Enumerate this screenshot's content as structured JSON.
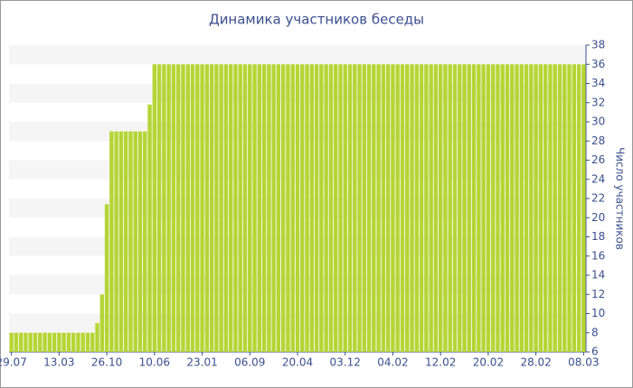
{
  "chart_data": {
    "type": "bar",
    "title": "Динамика участников беседы",
    "y_label": "Число участников",
    "color": "#b5d536",
    "grid": true,
    "ylim": [
      6,
      38
    ],
    "yticks": [
      6,
      8,
      10,
      12,
      14,
      16,
      18,
      20,
      22,
      24,
      26,
      28,
      30,
      32,
      34,
      36,
      38
    ],
    "categories": [
      "29.07",
      null,
      null,
      null,
      null,
      null,
      null,
      null,
      null,
      null,
      "13.03",
      null,
      null,
      null,
      null,
      null,
      null,
      null,
      null,
      null,
      "26.10",
      null,
      null,
      null,
      null,
      null,
      null,
      null,
      null,
      null,
      "10.06",
      null,
      null,
      null,
      null,
      null,
      null,
      null,
      null,
      null,
      "23.01",
      null,
      null,
      null,
      null,
      null,
      null,
      null,
      null,
      null,
      "06.09",
      null,
      null,
      null,
      null,
      null,
      null,
      null,
      null,
      null,
      "20.04",
      null,
      null,
      null,
      null,
      null,
      null,
      null,
      null,
      null,
      "03.12",
      null,
      null,
      null,
      null,
      null,
      null,
      null,
      null,
      null,
      "04.02",
      null,
      null,
      null,
      null,
      null,
      null,
      null,
      null,
      null,
      "12.02",
      null,
      null,
      null,
      null,
      null,
      null,
      null,
      null,
      null,
      "20.02",
      null,
      null,
      null,
      null,
      null,
      null,
      null,
      null,
      null,
      "28.02",
      null,
      null,
      null,
      null,
      null,
      null,
      null,
      null,
      null,
      "08.03"
    ],
    "values": [
      8,
      8,
      8,
      8,
      8,
      8,
      8,
      8,
      8,
      8,
      8,
      8,
      8,
      8,
      8,
      8,
      8,
      8,
      9,
      12,
      21.4,
      29,
      29,
      29,
      29,
      29,
      29,
      29,
      29,
      31.8,
      36,
      36,
      36,
      36,
      36,
      36,
      36,
      36,
      36,
      36,
      36,
      36,
      36,
      36,
      36,
      36,
      36,
      36,
      36,
      36,
      36,
      36,
      36,
      36,
      36,
      36,
      36,
      36,
      36,
      36,
      36,
      36,
      36,
      36,
      36,
      36,
      36,
      36,
      36,
      36,
      36,
      36,
      36,
      36,
      36,
      36,
      36,
      36,
      36,
      36,
      36,
      36,
      36,
      36,
      36,
      36,
      36,
      36,
      36,
      36,
      36,
      36,
      36,
      36,
      36,
      36,
      36,
      36,
      36,
      36,
      36,
      36,
      36,
      36,
      36,
      36,
      36,
      36,
      36,
      36,
      36,
      36,
      36,
      36,
      36,
      36,
      36,
      36,
      36,
      36,
      36
    ]
  }
}
